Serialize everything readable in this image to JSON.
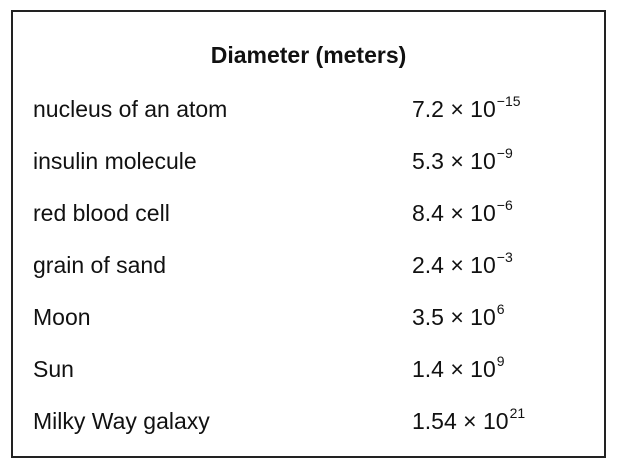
{
  "table": {
    "title": "Diameter (meters)",
    "rows": [
      {
        "name": "nucleus of an atom",
        "value": "7.2 × 10",
        "exponent": "−15"
      },
      {
        "name": "insulin molecule",
        "value": "5.3 × 10",
        "exponent": "−9"
      },
      {
        "name": "red blood cell",
        "value": "8.4 × 10",
        "exponent": "−6"
      },
      {
        "name": "grain of sand",
        "value": "2.4 × 10",
        "exponent": "−3"
      },
      {
        "name": "Moon",
        "value": "3.5 × 10",
        "exponent": "6"
      },
      {
        "name": "Sun",
        "value": "1.4 × 10",
        "exponent": "9"
      },
      {
        "name": "Milky Way galaxy",
        "value": "1.54 × 10",
        "exponent": "21"
      }
    ]
  }
}
